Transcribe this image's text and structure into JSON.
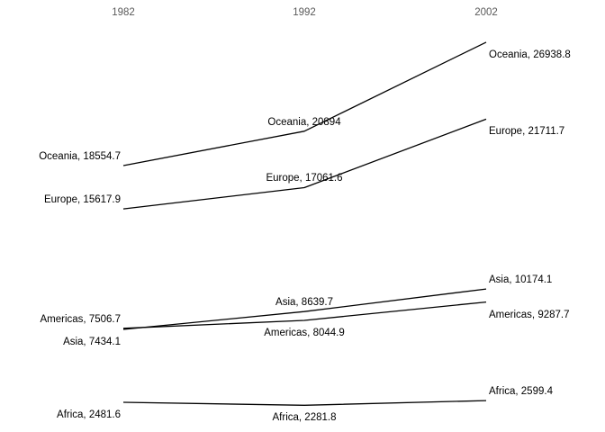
{
  "chart_data": {
    "type": "line",
    "title": "",
    "xlabel": "",
    "ylabel": "",
    "categories": [
      "1982",
      "1992",
      "2002"
    ],
    "series": [
      {
        "name": "Oceania",
        "values": [
          18554.7,
          20894,
          26938.8
        ],
        "label_side": [
          "above",
          "above",
          "below"
        ]
      },
      {
        "name": "Europe",
        "values": [
          15617.9,
          17061.6,
          21711.7
        ],
        "label_side": [
          "above",
          "above",
          "below"
        ]
      },
      {
        "name": "Asia",
        "values": [
          7434.1,
          8639.7,
          10174.1
        ],
        "label_side": [
          "below",
          "above",
          "above"
        ]
      },
      {
        "name": "Americas",
        "values": [
          7506.7,
          8044.9,
          9287.7
        ],
        "label_side": [
          "above",
          "below",
          "below"
        ]
      },
      {
        "name": "Africa",
        "values": [
          2481.6,
          2281.8,
          2599.4
        ],
        "label_side": [
          "below",
          "below",
          "above"
        ]
      }
    ],
    "data_label_format": "{name}, {value}",
    "ylim": [
      465,
      29800
    ],
    "grid": false,
    "legend": false,
    "axes_visible": false,
    "line_color": "#000000",
    "data_label_color": "#000000",
    "axis_label_color": "#595959",
    "background_color": "#ffffff"
  }
}
